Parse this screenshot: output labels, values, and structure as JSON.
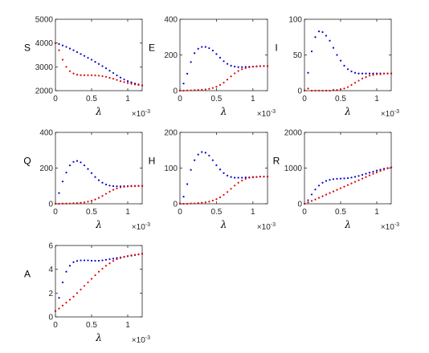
{
  "figure": {
    "series_colors": [
      "#0000cc",
      "#e00000"
    ],
    "x_multiplier_base": "×10",
    "x_multiplier_exp": "-3"
  },
  "chart_data": [
    {
      "type": "scatter",
      "ylabel": "S",
      "xlabel": "λ",
      "xlim": [
        0,
        0.0012
      ],
      "ylim": [
        2000,
        5000
      ],
      "xticks": [
        0,
        0.0005,
        0.001
      ],
      "xtick_labels": [
        "0",
        "0.5",
        "1"
      ],
      "yticks": [
        2000,
        3000,
        4000,
        5000
      ],
      "ytick_labels": [
        "2000",
        "3000",
        "4000",
        "5000"
      ],
      "x": [
        0,
        5e-05,
        0.0001,
        0.00015,
        0.0002,
        0.00025,
        0.0003,
        0.00035,
        0.0004,
        0.00045,
        0.0005,
        0.00055,
        0.0006,
        0.00065,
        0.0007,
        0.00075,
        0.0008,
        0.00085,
        0.0009,
        0.00095,
        0.001,
        0.00105,
        0.0011,
        0.00115,
        0.0012
      ],
      "series": [
        {
          "color": "#0000cc",
          "values": [
            4000,
            3960,
            3900,
            3840,
            3770,
            3700,
            3620,
            3540,
            3460,
            3380,
            3300,
            3210,
            3120,
            3030,
            2940,
            2840,
            2740,
            2640,
            2550,
            2470,
            2400,
            2350,
            2300,
            2260,
            2220
          ]
        },
        {
          "color": "#e00000",
          "values": [
            4000,
            3700,
            3300,
            3000,
            2820,
            2720,
            2670,
            2650,
            2650,
            2650,
            2650,
            2640,
            2630,
            2610,
            2580,
            2540,
            2500,
            2450,
            2400,
            2360,
            2320,
            2290,
            2260,
            2240,
            2220
          ]
        }
      ]
    },
    {
      "type": "scatter",
      "ylabel": "E",
      "xlabel": "λ",
      "xlim": [
        0,
        0.0012
      ],
      "ylim": [
        0,
        400
      ],
      "xticks": [
        0,
        0.0005,
        0.001
      ],
      "xtick_labels": [
        "0",
        "0.5",
        "1"
      ],
      "yticks": [
        0,
        200,
        400
      ],
      "ytick_labels": [
        "0",
        "200",
        "400"
      ],
      "x": [
        0,
        5e-05,
        0.0001,
        0.00015,
        0.0002,
        0.00025,
        0.0003,
        0.00035,
        0.0004,
        0.00045,
        0.0005,
        0.00055,
        0.0006,
        0.00065,
        0.0007,
        0.00075,
        0.0008,
        0.00085,
        0.0009,
        0.00095,
        0.001,
        0.00105,
        0.0011,
        0.00115,
        0.0012
      ],
      "series": [
        {
          "color": "#0000cc",
          "values": [
            0,
            40,
            95,
            160,
            210,
            235,
            245,
            245,
            238,
            225,
            205,
            185,
            165,
            150,
            140,
            135,
            132,
            132,
            133,
            134,
            135,
            136,
            137,
            138,
            138
          ]
        },
        {
          "color": "#e00000",
          "values": [
            0,
            0,
            1,
            2,
            3,
            4,
            5,
            7,
            10,
            15,
            22,
            32,
            45,
            62,
            80,
            97,
            110,
            120,
            127,
            131,
            134,
            136,
            137,
            138,
            138
          ]
        }
      ]
    },
    {
      "type": "scatter",
      "ylabel": "I",
      "xlabel": "λ",
      "xlim": [
        0,
        0.0012
      ],
      "ylim": [
        0,
        100
      ],
      "xticks": [
        0,
        0.0005,
        0.001
      ],
      "xtick_labels": [
        "0",
        "0.5",
        "1"
      ],
      "yticks": [
        0,
        50,
        100
      ],
      "ytick_labels": [
        "0",
        "50",
        "100"
      ],
      "x": [
        0,
        5e-05,
        0.0001,
        0.00015,
        0.0002,
        0.00025,
        0.0003,
        0.00035,
        0.0004,
        0.00045,
        0.0005,
        0.00055,
        0.0006,
        0.00065,
        0.0007,
        0.00075,
        0.0008,
        0.00085,
        0.0009,
        0.00095,
        0.001,
        0.00105,
        0.0011,
        0.00115,
        0.0012
      ],
      "series": [
        {
          "color": "#0000cc",
          "values": [
            0,
            25,
            55,
            75,
            83,
            82,
            77,
            70,
            60,
            50,
            42,
            35,
            30,
            27,
            25,
            24,
            24,
            24,
            24,
            24,
            24,
            24,
            24,
            24,
            24
          ]
        },
        {
          "color": "#e00000",
          "values": [
            0,
            3,
            0,
            0,
            0,
            0,
            0,
            0,
            1,
            1,
            2,
            3,
            5,
            8,
            11,
            14,
            17,
            19,
            21,
            22,
            23,
            23,
            24,
            24,
            24
          ]
        }
      ]
    },
    {
      "type": "scatter",
      "ylabel": "Q",
      "xlabel": "λ",
      "xlim": [
        0,
        0.0012
      ],
      "ylim": [
        0,
        400
      ],
      "xticks": [
        0,
        0.0005,
        0.001
      ],
      "xtick_labels": [
        "0",
        "0.5",
        "1"
      ],
      "yticks": [
        0,
        200,
        400
      ],
      "ytick_labels": [
        "0",
        "200",
        "400"
      ],
      "x": [
        0,
        5e-05,
        0.0001,
        0.00015,
        0.0002,
        0.00025,
        0.0003,
        0.00035,
        0.0004,
        0.00045,
        0.0005,
        0.00055,
        0.0006,
        0.00065,
        0.0007,
        0.00075,
        0.0008,
        0.00085,
        0.0009,
        0.00095,
        0.001,
        0.00105,
        0.0011,
        0.00115,
        0.0012
      ],
      "series": [
        {
          "color": "#0000cc",
          "values": [
            0,
            60,
            125,
            175,
            215,
            235,
            240,
            232,
            215,
            195,
            172,
            150,
            132,
            118,
            108,
            102,
            99,
            98,
            98,
            99,
            99,
            100,
            100,
            100,
            100
          ]
        },
        {
          "color": "#e00000",
          "values": [
            0,
            0,
            1,
            1,
            2,
            3,
            4,
            6,
            8,
            12,
            17,
            24,
            33,
            44,
            56,
            68,
            78,
            86,
            92,
            95,
            97,
            98,
            99,
            100,
            100
          ]
        }
      ]
    },
    {
      "type": "scatter",
      "ylabel": "H",
      "xlabel": "λ",
      "xlim": [
        0,
        0.0012
      ],
      "ylim": [
        0,
        200
      ],
      "xticks": [
        0,
        0.0005,
        0.001
      ],
      "xtick_labels": [
        "0",
        "0.5",
        "1"
      ],
      "yticks": [
        0,
        100,
        200
      ],
      "ytick_labels": [
        "0",
        "100",
        "200"
      ],
      "x": [
        0,
        5e-05,
        0.0001,
        0.00015,
        0.0002,
        0.00025,
        0.0003,
        0.00035,
        0.0004,
        0.00045,
        0.0005,
        0.00055,
        0.0006,
        0.00065,
        0.0007,
        0.00075,
        0.0008,
        0.00085,
        0.0009,
        0.00095,
        0.001,
        0.00105,
        0.0011,
        0.00115,
        0.0012
      ],
      "series": [
        {
          "color": "#0000cc",
          "values": [
            0,
            20,
            55,
            95,
            122,
            138,
            145,
            143,
            135,
            122,
            108,
            96,
            86,
            79,
            75,
            73,
            73,
            73,
            74,
            74,
            75,
            75,
            76,
            76,
            76
          ]
        },
        {
          "color": "#e00000",
          "values": [
            0,
            0,
            0,
            1,
            1,
            2,
            3,
            4,
            6,
            9,
            13,
            18,
            25,
            33,
            42,
            51,
            59,
            65,
            70,
            73,
            74,
            75,
            76,
            76,
            76
          ]
        }
      ]
    },
    {
      "type": "scatter",
      "ylabel": "R",
      "xlabel": "λ",
      "xlim": [
        0,
        0.0012
      ],
      "ylim": [
        0,
        2000
      ],
      "xticks": [
        0,
        0.0005,
        0.001
      ],
      "xtick_labels": [
        "0",
        "0.5",
        "1"
      ],
      "yticks": [
        0,
        1000,
        2000
      ],
      "ytick_labels": [
        "0",
        "1000",
        "2000"
      ],
      "x": [
        0,
        5e-05,
        0.0001,
        0.00015,
        0.0002,
        0.00025,
        0.0003,
        0.00035,
        0.0004,
        0.00045,
        0.0005,
        0.00055,
        0.0006,
        0.00065,
        0.0007,
        0.00075,
        0.0008,
        0.00085,
        0.0009,
        0.00095,
        0.001,
        0.00105,
        0.0011,
        0.00115,
        0.0012
      ],
      "series": [
        {
          "color": "#0000cc",
          "values": [
            0,
            100,
            260,
            400,
            510,
            590,
            640,
            670,
            690,
            700,
            705,
            710,
            720,
            735,
            755,
            780,
            810,
            840,
            870,
            900,
            930,
            955,
            980,
            1000,
            1020
          ]
        },
        {
          "color": "#e00000",
          "values": [
            0,
            40,
            80,
            120,
            165,
            210,
            255,
            300,
            345,
            390,
            435,
            480,
            525,
            570,
            615,
            660,
            705,
            750,
            795,
            840,
            880,
            920,
            955,
            990,
            1020
          ]
        }
      ]
    },
    {
      "type": "scatter",
      "ylabel": "A",
      "xlabel": "λ",
      "xlim": [
        0,
        0.0012
      ],
      "ylim": [
        0,
        6
      ],
      "xticks": [
        0,
        0.0005,
        0.001
      ],
      "xtick_labels": [
        "0",
        "0.5",
        "1"
      ],
      "yticks": [
        0,
        2,
        4,
        6
      ],
      "ytick_labels": [
        "0",
        "2",
        "4",
        "6"
      ],
      "x": [
        0,
        5e-05,
        0.0001,
        0.00015,
        0.0002,
        0.00025,
        0.0003,
        0.00035,
        0.0004,
        0.00045,
        0.0005,
        0.00055,
        0.0006,
        0.00065,
        0.0007,
        0.00075,
        0.0008,
        0.00085,
        0.0009,
        0.00095,
        0.001,
        0.00105,
        0.0011,
        0.00115,
        0.0012
      ],
      "series": [
        {
          "color": "#0000cc",
          "values": [
            0.5,
            1.6,
            2.9,
            3.8,
            4.3,
            4.6,
            4.7,
            4.75,
            4.75,
            4.75,
            4.72,
            4.72,
            4.72,
            4.75,
            4.8,
            4.85,
            4.9,
            4.95,
            5.0,
            5.05,
            5.1,
            5.15,
            5.2,
            5.25,
            5.3
          ]
        },
        {
          "color": "#e00000",
          "values": [
            0.5,
            0.7,
            0.95,
            1.2,
            1.45,
            1.7,
            2.0,
            2.3,
            2.6,
            2.9,
            3.2,
            3.5,
            3.8,
            4.05,
            4.3,
            4.5,
            4.7,
            4.85,
            4.95,
            5.05,
            5.12,
            5.18,
            5.22,
            5.26,
            5.3
          ]
        }
      ]
    }
  ]
}
